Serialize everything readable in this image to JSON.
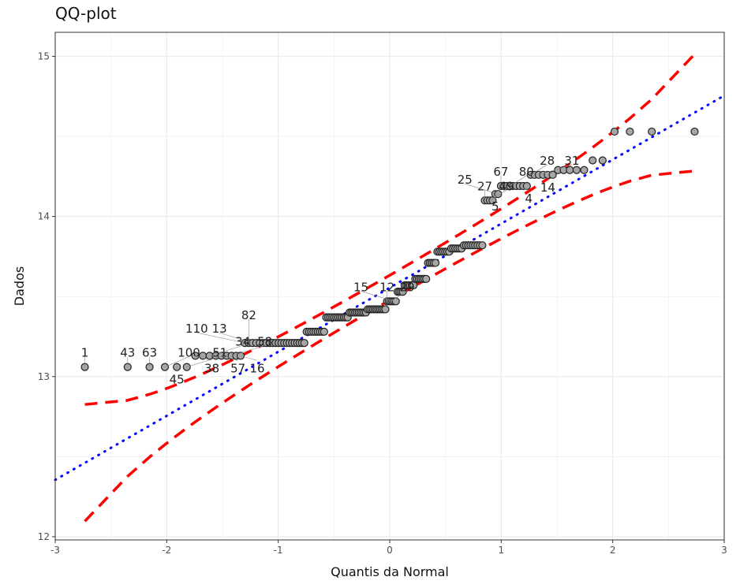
{
  "chart_data": {
    "type": "scatter",
    "title": "QQ-plot",
    "xlabel": "Quantis da Normal",
    "ylabel": "Dados",
    "xlim": [
      -3,
      3
    ],
    "ylim": [
      11.98,
      15.15
    ],
    "xticks": [
      -3,
      -2,
      -1,
      0,
      1,
      2,
      3
    ],
    "yticks": [
      12,
      13,
      14,
      15
    ],
    "grid": true,
    "n": 160,
    "sample_groups": [
      {
        "value": 13.06,
        "count": 6
      },
      {
        "value": 13.13,
        "count": 9
      },
      {
        "value": 13.21,
        "count": 21
      },
      {
        "value": 13.28,
        "count": 9
      },
      {
        "value": 13.37,
        "count": 12
      },
      {
        "value": 13.4,
        "count": 10
      },
      {
        "value": 13.42,
        "count": 11
      },
      {
        "value": 13.47,
        "count": 6
      },
      {
        "value": 13.53,
        "count": 4
      },
      {
        "value": 13.57,
        "count": 6
      },
      {
        "value": 13.61,
        "count": 7
      },
      {
        "value": 13.71,
        "count": 5
      },
      {
        "value": 13.78,
        "count": 7
      },
      {
        "value": 13.8,
        "count": 6
      },
      {
        "value": 13.82,
        "count": 9
      },
      {
        "value": 14.1,
        "count": 4
      },
      {
        "value": 14.14,
        "count": 2
      },
      {
        "value": 14.19,
        "count": 9
      },
      {
        "value": 14.26,
        "count": 6
      },
      {
        "value": 14.29,
        "count": 5
      },
      {
        "value": 14.35,
        "count": 2
      },
      {
        "value": 14.53,
        "count": 4
      }
    ],
    "reference_line": {
      "intercept": 13.555,
      "slope": 0.4,
      "color": "#0000ff"
    },
    "envelope": {
      "level": 0.95,
      "color": "#ff0000"
    },
    "point_color": "#a6a6a6",
    "point_labels": [
      {
        "rank": 1,
        "text": "1"
      },
      {
        "rank": 2,
        "text": "43"
      },
      {
        "rank": 3,
        "text": "63"
      },
      {
        "rank": 4,
        "text": "100"
      },
      {
        "rank": 5,
        "text": "45"
      },
      {
        "rank": 6,
        "text": "51"
      },
      {
        "rank": 7,
        "text": "38"
      },
      {
        "rank": 9,
        "text": "34"
      },
      {
        "rank": 11,
        "text": "57"
      },
      {
        "rank": 13,
        "text": "58"
      },
      {
        "rank": 15,
        "text": "16"
      },
      {
        "rank": 16,
        "text": "110"
      },
      {
        "rank": 17,
        "text": "82"
      },
      {
        "rank": 18,
        "text": "13"
      },
      {
        "rank": 79,
        "text": "12"
      },
      {
        "rank": 81,
        "text": "29"
      },
      {
        "rank": 83,
        "text": "15"
      },
      {
        "rank": 129,
        "text": "27"
      },
      {
        "rank": 131,
        "text": "49"
      },
      {
        "rank": 133,
        "text": "5"
      },
      {
        "rank": 134,
        "text": "25"
      },
      {
        "rank": 135,
        "text": "67"
      },
      {
        "rank": 138,
        "text": "80"
      },
      {
        "rank": 141,
        "text": "4"
      },
      {
        "rank": 144,
        "text": "28"
      },
      {
        "rank": 146,
        "text": "31"
      },
      {
        "rank": 148,
        "text": "14"
      }
    ]
  }
}
